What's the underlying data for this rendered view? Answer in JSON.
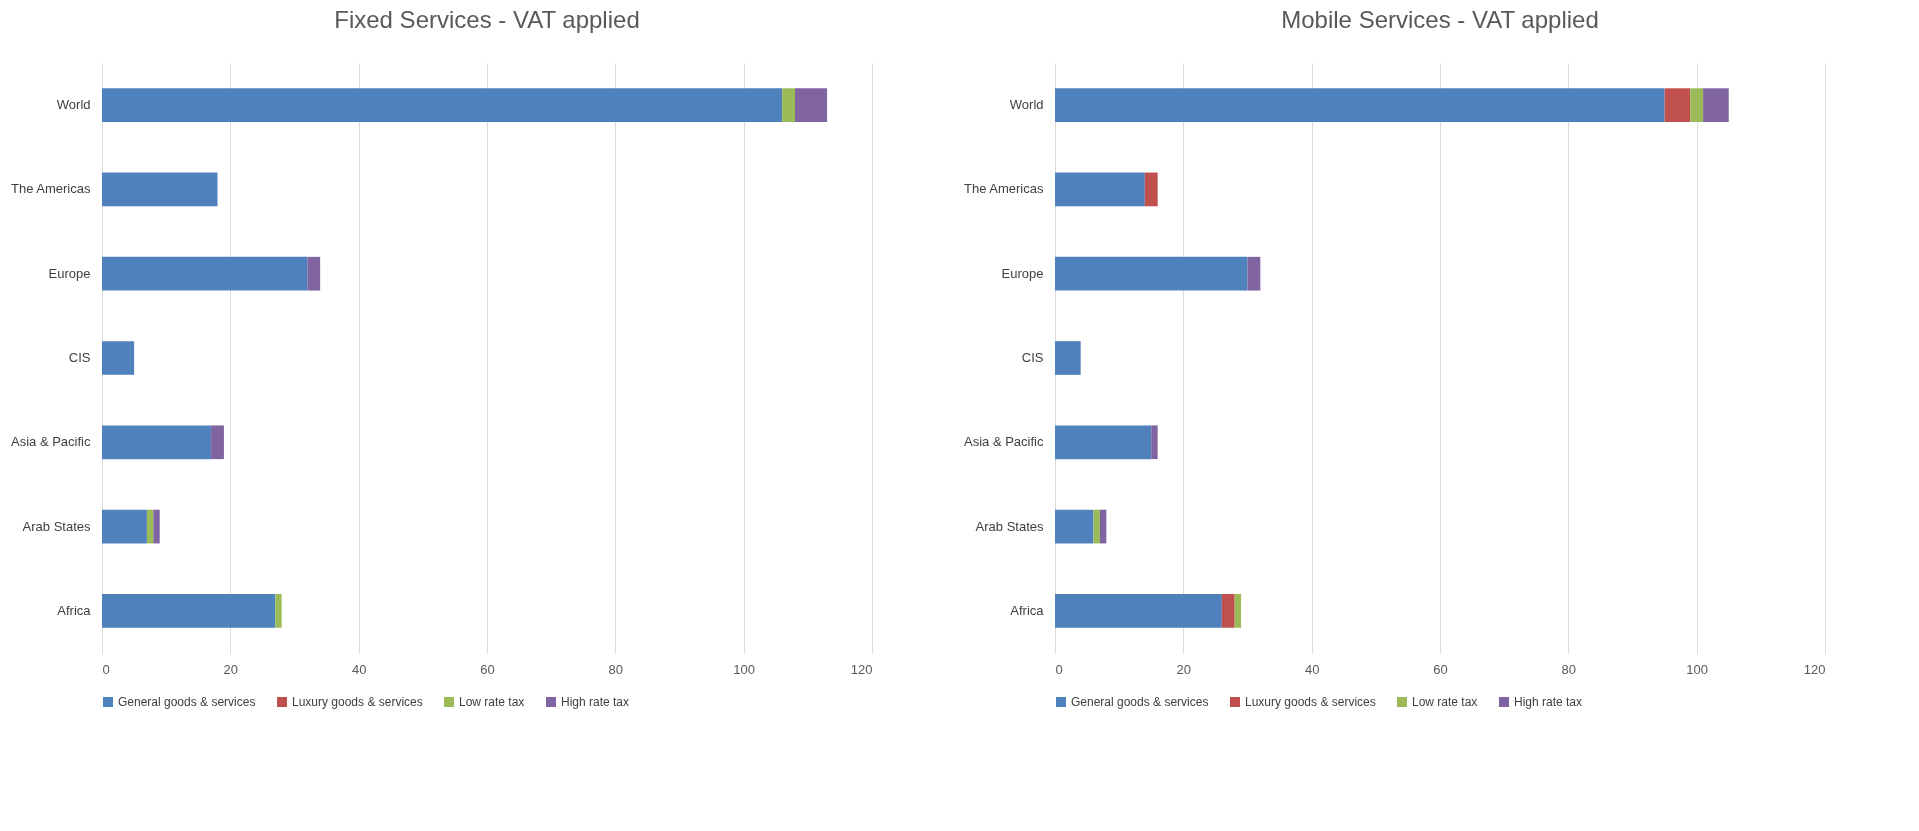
{
  "chart_data": [
    {
      "type": "bar",
      "title": "Fixed Services - VAT applied",
      "orientation": "horizontal",
      "stacked": true,
      "categories": [
        "World",
        "The Americas",
        "Europe",
        "CIS",
        "Asia & Pacific",
        "Arab States",
        "Africa"
      ],
      "series": [
        {
          "name": "General goods & services",
          "color": "#4f81bd",
          "values": [
            106,
            18,
            32,
            5,
            17,
            7,
            27
          ]
        },
        {
          "name": "Luxury goods & services",
          "color": "#c0504d",
          "values": [
            0,
            0,
            0,
            0,
            0,
            0,
            0
          ]
        },
        {
          "name": "Low rate tax",
          "color": "#9bbb59",
          "values": [
            2,
            0,
            0,
            0,
            0,
            1,
            1
          ]
        },
        {
          "name": "High rate tax",
          "color": "#8064a2",
          "values": [
            5,
            0,
            2,
            0,
            2,
            1,
            0
          ]
        }
      ],
      "xlim": [
        0,
        120
      ],
      "xticks": [
        0,
        20,
        40,
        60,
        80,
        100,
        120
      ],
      "grid": "x",
      "legend": "bottom"
    },
    {
      "type": "bar",
      "title": "Mobile Services - VAT applied",
      "orientation": "horizontal",
      "stacked": true,
      "categories": [
        "World",
        "The Americas",
        "Europe",
        "CIS",
        "Asia & Pacific",
        "Arab States",
        "Africa"
      ],
      "series": [
        {
          "name": "General goods & services",
          "color": "#4f81bd",
          "values": [
            95,
            14,
            30,
            4,
            15,
            6,
            26
          ]
        },
        {
          "name": "Luxury goods & services",
          "color": "#c0504d",
          "values": [
            4,
            2,
            0,
            0,
            0,
            0,
            2
          ]
        },
        {
          "name": "Low rate tax",
          "color": "#9bbb59",
          "values": [
            2,
            0,
            0,
            0,
            0,
            1,
            1
          ]
        },
        {
          "name": "High rate tax",
          "color": "#8064a2",
          "values": [
            4,
            0,
            2,
            0,
            1,
            1,
            0
          ]
        }
      ],
      "xlim": [
        0,
        120
      ],
      "xticks": [
        0,
        20,
        40,
        60,
        80,
        100,
        120
      ],
      "grid": "x",
      "legend": "bottom"
    }
  ]
}
